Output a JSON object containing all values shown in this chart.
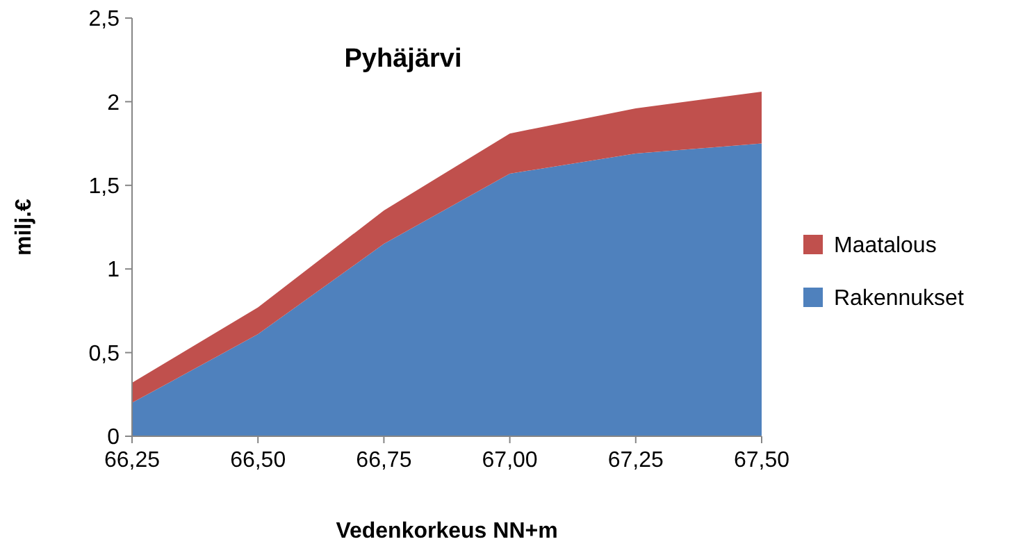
{
  "chart_data": {
    "type": "area",
    "title": "Pyhäjärvi",
    "xlabel": "Vedenkorkeus NN+m",
    "ylabel": "milj.€",
    "categories": [
      "66,25",
      "66,50",
      "66,75",
      "67,00",
      "67,25",
      "67,50"
    ],
    "stacked": true,
    "series": [
      {
        "name": "Rakennukset",
        "color": "#4f81bd",
        "values": [
          0.2,
          0.61,
          1.15,
          1.57,
          1.69,
          1.75
        ]
      },
      {
        "name": "Maatalous",
        "color": "#c0504d",
        "values": [
          0.12,
          0.16,
          0.2,
          0.24,
          0.27,
          0.31
        ]
      }
    ],
    "ylim": [
      0,
      2.5
    ],
    "yticks": [
      {
        "value": 0,
        "label": "0"
      },
      {
        "value": 0.5,
        "label": "0,5"
      },
      {
        "value": 1,
        "label": "1"
      },
      {
        "value": 1.5,
        "label": "1,5"
      },
      {
        "value": 2,
        "label": "2"
      },
      {
        "value": 2.5,
        "label": "2,5"
      }
    ],
    "grid": false,
    "legend": "right"
  }
}
